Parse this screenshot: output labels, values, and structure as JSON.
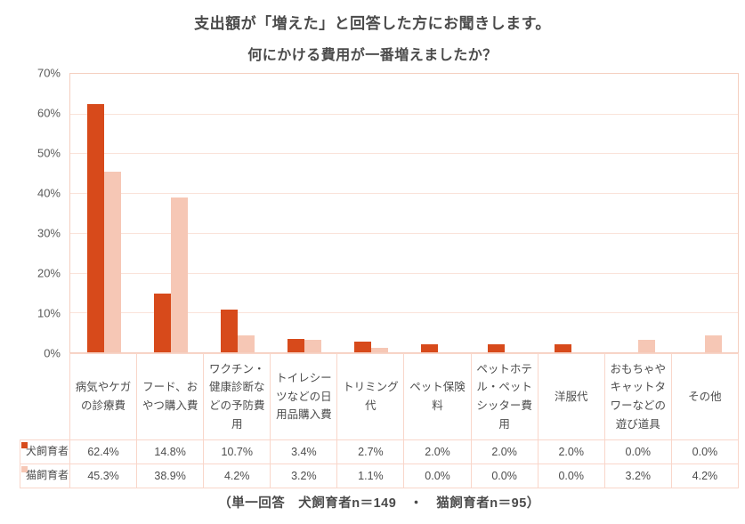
{
  "title": "支出額が「増えた」と回答した方にお聞きします。",
  "subtitle": "何にかける費用が一番増えましたか？",
  "footer": "（単一回答　犬飼育者n＝149　・　猫飼育者n＝95）",
  "colors": {
    "dog_bar": "#d74a1b",
    "cat_bar": "#f6c7b5",
    "gridline": "#fae3da",
    "border": "#f9d6ca",
    "text": "#4a4a4a"
  },
  "chart_data": {
    "type": "bar",
    "title": "何にかける費用が一番増えましたか？",
    "xlabel": "",
    "ylabel": "",
    "ylim": [
      0,
      70
    ],
    "y_ticks": [
      "70%",
      "60%",
      "50%",
      "40%",
      "30%",
      "20%",
      "10%",
      "0%"
    ],
    "grid": true,
    "legend_position": "table-rows",
    "value_suffix": "%",
    "categories": [
      "病気やケガの診療費",
      "フード、おやつ購入費",
      "ワクチン・健康診断などの予防費用",
      "トイレシーツなどの日用品購入費",
      "トリミング代",
      "ペット保険料",
      "ペットホテル・ペットシッター費用",
      "洋服代",
      "おもちゃやキャットタワーなどの遊び道具",
      "その他"
    ],
    "series": [
      {
        "name": "犬飼育者",
        "color": "#d74a1b",
        "values": [
          62.4,
          14.8,
          10.7,
          3.4,
          2.7,
          2.0,
          2.0,
          2.0,
          0.0,
          0.0
        ]
      },
      {
        "name": "猫飼育者",
        "color": "#f6c7b5",
        "values": [
          45.3,
          38.9,
          4.2,
          3.2,
          1.1,
          0.0,
          0.0,
          0.0,
          3.2,
          4.2
        ]
      }
    ]
  }
}
